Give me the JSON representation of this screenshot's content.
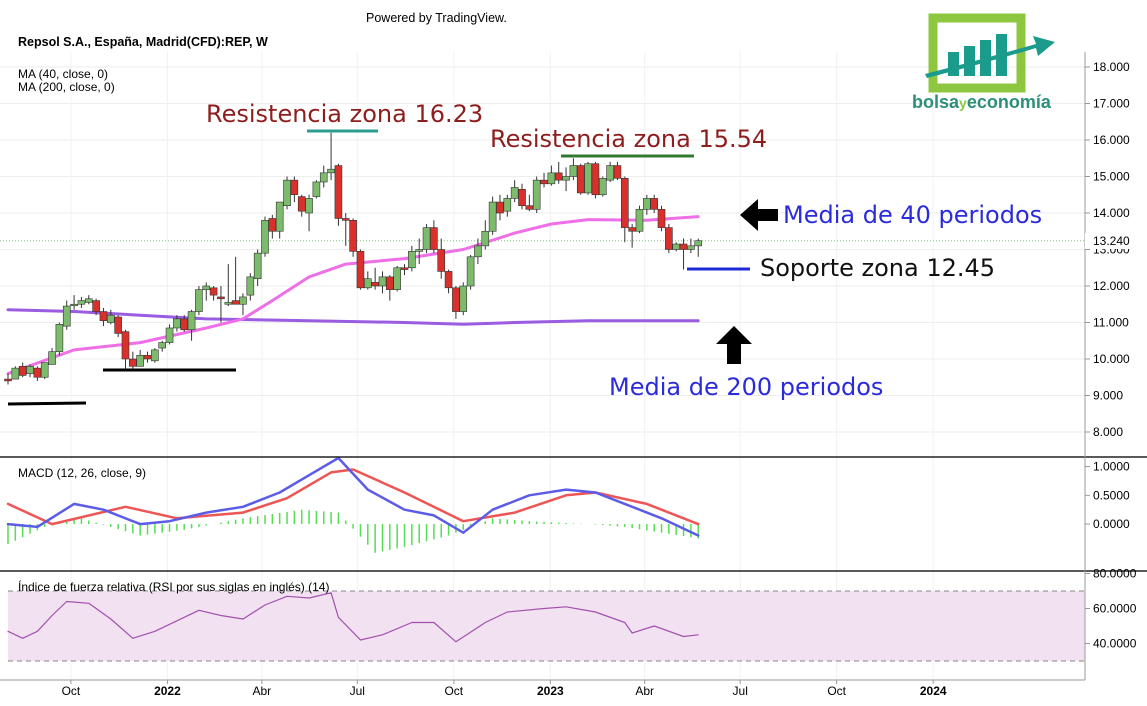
{
  "header": {
    "powered_by": "Powered by TradingView.",
    "symbol": "Repsol S.A., España, Madrid(CFD):REP, W",
    "ma40_label": "MA (40, close, 0)",
    "ma200_label": "MA (200, close, 0)"
  },
  "logo": {
    "text_bolsa": "bolsa",
    "text_y": "y",
    "text_economia": "economía",
    "color_green": "#8dc63f",
    "color_teal": "#1a9b8c"
  },
  "annotations": {
    "resist_1623": "Resistencia zona 16.23",
    "resist_1554": "Resistencia zona 15.54",
    "media40": "Media de 40 periodos",
    "soporte": "Soporte zona 12.45",
    "media200": "Media de 200 periodos"
  },
  "price_axis": {
    "ticks": [
      "18.000",
      "17.000",
      "16.000",
      "15.000",
      "14.000",
      "13.000",
      "12.000",
      "11.000",
      "10.000",
      "9.000",
      "8.000"
    ],
    "last_price": "13.240"
  },
  "macd_axis": {
    "ticks": [
      "1.0000",
      "0.5000",
      "0.0000"
    ]
  },
  "rsi_axis": {
    "ticks": [
      "80.0000",
      "60.0000",
      "40.0000"
    ]
  },
  "time_axis": {
    "ticks": [
      "Oct",
      "2022",
      "Abr",
      "Jul",
      "Oct",
      "2023",
      "Abr",
      "Jul",
      "Oct",
      "2024"
    ]
  },
  "macd_label": "MACD (12, 26, close, 9)",
  "rsi_label": "Índice de fuerza relativa (RSI por sus siglas en inglés) (14)",
  "colors": {
    "up": "#7dbb6c",
    "down": "#d9302c",
    "ma40": "#ee6fe7",
    "ma200": "#9a5ce0",
    "macd": "#5b5ce8",
    "signal": "#ee5555",
    "hist": "#55dd55",
    "rsi": "#a251ad",
    "rsi_band": "#f1e1f1"
  },
  "chart_data": [
    {
      "type": "candlestick",
      "title": "Repsol S.A., España, Madrid(CFD):REP, W",
      "ylim": [
        7.5,
        18.3
      ],
      "x_range": [
        "2021-08-02",
        "2024-04-08"
      ],
      "candles": [
        [
          "2021-08-02",
          9.45,
          9.6,
          9.3,
          9.4
        ],
        [
          "2021-08-09",
          9.45,
          9.8,
          9.45,
          9.75
        ],
        [
          "2021-08-16",
          9.8,
          9.9,
          9.5,
          9.55
        ],
        [
          "2021-08-23",
          9.6,
          9.85,
          9.5,
          9.8
        ],
        [
          "2021-08-30",
          9.75,
          9.8,
          9.4,
          9.5
        ],
        [
          "2021-09-06",
          9.5,
          9.9,
          9.45,
          9.9
        ],
        [
          "2021-09-13",
          9.85,
          10.3,
          9.85,
          10.2
        ],
        [
          "2021-09-20",
          10.2,
          11.0,
          10.1,
          10.95
        ],
        [
          "2021-09-27",
          10.9,
          11.6,
          10.8,
          11.45
        ],
        [
          "2021-10-04",
          11.5,
          11.75,
          11.35,
          11.5
        ],
        [
          "2021-10-11",
          11.5,
          11.7,
          11.4,
          11.6
        ],
        [
          "2021-10-18",
          11.55,
          11.75,
          11.5,
          11.65
        ],
        [
          "2021-10-25",
          11.6,
          11.65,
          11.2,
          11.3
        ],
        [
          "2021-11-01",
          11.3,
          11.4,
          10.9,
          11.05
        ],
        [
          "2021-11-08",
          11.0,
          11.35,
          10.95,
          11.2
        ],
        [
          "2021-11-15",
          11.15,
          11.2,
          10.6,
          10.7
        ],
        [
          "2021-11-22",
          10.75,
          10.8,
          9.7,
          10.0
        ],
        [
          "2021-11-29",
          10.0,
          10.2,
          9.7,
          9.8
        ],
        [
          "2021-12-06",
          9.8,
          10.25,
          9.8,
          10.1
        ],
        [
          "2021-12-13",
          10.1,
          10.2,
          9.9,
          10.0
        ],
        [
          "2021-12-20",
          9.95,
          10.3,
          9.9,
          10.25
        ],
        [
          "2021-12-27",
          10.3,
          10.5,
          10.2,
          10.45
        ],
        [
          "2022-01-03",
          10.45,
          10.95,
          10.4,
          10.85
        ],
        [
          "2022-01-10",
          10.85,
          11.2,
          10.75,
          11.1
        ],
        [
          "2022-01-17",
          11.1,
          11.2,
          10.75,
          10.8
        ],
        [
          "2022-01-24",
          10.8,
          11.35,
          10.5,
          11.3
        ],
        [
          "2022-01-31",
          11.3,
          12.0,
          11.2,
          11.9
        ],
        [
          "2022-02-07",
          11.9,
          12.1,
          11.6,
          12.0
        ],
        [
          "2022-02-14",
          11.95,
          12.0,
          11.6,
          11.75
        ],
        [
          "2022-02-21",
          11.7,
          12.0,
          11.0,
          11.65
        ],
        [
          "2022-02-28",
          11.5,
          12.6,
          11.45,
          11.55
        ],
        [
          "2022-03-07",
          11.6,
          12.8,
          11.5,
          11.5
        ],
        [
          "2022-03-14",
          11.5,
          11.8,
          11.2,
          11.7
        ],
        [
          "2022-03-21",
          11.75,
          12.35,
          11.6,
          12.25
        ],
        [
          "2022-03-28",
          12.2,
          13.0,
          12.0,
          12.9
        ],
        [
          "2022-04-04",
          12.9,
          13.9,
          12.8,
          13.8
        ],
        [
          "2022-04-11",
          13.85,
          13.95,
          13.3,
          13.5
        ],
        [
          "2022-04-18",
          13.5,
          14.3,
          13.3,
          14.3
        ],
        [
          "2022-04-25",
          14.2,
          15.0,
          14.1,
          14.9
        ],
        [
          "2022-05-02",
          14.9,
          15.0,
          14.3,
          14.5
        ],
        [
          "2022-05-09",
          14.45,
          14.5,
          13.9,
          14.05
        ],
        [
          "2022-05-16",
          14.0,
          14.5,
          13.5,
          14.4
        ],
        [
          "2022-05-23",
          14.45,
          14.9,
          14.4,
          14.85
        ],
        [
          "2022-05-30",
          14.85,
          15.3,
          14.7,
          15.1
        ],
        [
          "2022-06-06",
          15.1,
          16.2,
          14.9,
          15.2
        ],
        [
          "2022-06-13",
          15.3,
          15.35,
          13.65,
          13.85
        ],
        [
          "2022-06-20",
          13.85,
          14.0,
          13.1,
          13.8
        ],
        [
          "2022-06-27",
          13.8,
          13.85,
          12.8,
          12.95
        ],
        [
          "2022-07-04",
          12.95,
          13.0,
          11.9,
          11.95
        ],
        [
          "2022-07-11",
          11.95,
          12.4,
          11.9,
          12.2
        ],
        [
          "2022-07-18",
          12.1,
          12.5,
          11.9,
          12.0
        ],
        [
          "2022-07-25",
          12.0,
          12.4,
          11.8,
          12.25
        ],
        [
          "2022-08-01",
          12.25,
          12.3,
          11.6,
          11.9
        ],
        [
          "2022-08-08",
          11.9,
          12.55,
          11.85,
          12.5
        ],
        [
          "2022-08-15",
          12.5,
          12.6,
          12.3,
          12.45
        ],
        [
          "2022-08-22",
          12.5,
          13.1,
          12.4,
          12.95
        ],
        [
          "2022-08-29",
          12.95,
          13.3,
          12.6,
          13.0
        ],
        [
          "2022-09-05",
          13.0,
          13.7,
          12.9,
          13.6
        ],
        [
          "2022-09-12",
          13.6,
          13.8,
          12.9,
          13.0
        ],
        [
          "2022-09-19",
          13.0,
          13.3,
          12.2,
          12.4
        ],
        [
          "2022-09-26",
          12.4,
          12.45,
          11.8,
          11.95
        ],
        [
          "2022-10-03",
          11.95,
          12.0,
          11.1,
          11.3
        ],
        [
          "2022-10-10",
          11.3,
          12.1,
          11.2,
          12.0
        ],
        [
          "2022-10-17",
          12.0,
          12.85,
          11.9,
          12.8
        ],
        [
          "2022-10-24",
          12.8,
          13.3,
          12.6,
          13.1
        ],
        [
          "2022-10-31",
          13.1,
          13.8,
          13.0,
          13.5
        ],
        [
          "2022-11-07",
          13.5,
          14.45,
          13.4,
          14.3
        ],
        [
          "2022-11-14",
          14.3,
          14.5,
          13.8,
          14.0
        ],
        [
          "2022-11-21",
          14.05,
          14.5,
          13.9,
          14.4
        ],
        [
          "2022-11-28",
          14.4,
          14.9,
          14.3,
          14.7
        ],
        [
          "2022-12-05",
          14.65,
          14.8,
          14.1,
          14.2
        ],
        [
          "2022-12-12",
          14.2,
          14.5,
          14.05,
          14.1
        ],
        [
          "2022-12-19",
          14.1,
          15.0,
          14.0,
          14.9
        ],
        [
          "2022-12-26",
          14.9,
          15.1,
          14.7,
          14.8
        ],
        [
          "2023-01-02",
          14.8,
          15.3,
          14.75,
          15.1
        ],
        [
          "2023-01-09",
          15.1,
          15.4,
          14.8,
          14.9
        ],
        [
          "2023-01-16",
          14.9,
          15.25,
          14.6,
          15.0
        ],
        [
          "2023-01-23",
          15.0,
          15.5,
          14.9,
          15.3
        ],
        [
          "2023-01-30",
          15.3,
          15.35,
          14.5,
          14.55
        ],
        [
          "2023-02-06",
          14.55,
          15.4,
          14.5,
          15.35
        ],
        [
          "2023-02-13",
          15.35,
          15.4,
          14.4,
          14.5
        ],
        [
          "2023-02-20",
          14.5,
          15.0,
          14.45,
          14.95
        ],
        [
          "2023-02-27",
          14.9,
          15.4,
          14.85,
          15.3
        ],
        [
          "2023-03-06",
          15.3,
          15.4,
          14.9,
          14.95
        ],
        [
          "2023-03-13",
          14.95,
          15.0,
          13.2,
          13.6
        ],
        [
          "2023-03-20",
          13.6,
          13.7,
          13.05,
          13.5
        ],
        [
          "2023-03-27",
          13.5,
          14.2,
          13.45,
          14.1
        ],
        [
          "2023-04-03",
          14.1,
          14.5,
          13.95,
          14.4
        ],
        [
          "2023-04-10",
          14.4,
          14.5,
          14.0,
          14.1
        ],
        [
          "2023-04-17",
          14.1,
          14.2,
          13.5,
          13.6
        ],
        [
          "2023-04-24",
          13.6,
          13.7,
          12.9,
          13.0
        ],
        [
          "2023-05-01",
          13.0,
          13.2,
          12.95,
          13.15
        ],
        [
          "2023-05-08",
          13.15,
          13.3,
          12.45,
          13.0
        ],
        [
          "2023-05-15",
          13.0,
          13.3,
          12.9,
          13.1
        ],
        [
          "2023-05-22",
          13.1,
          13.3,
          12.8,
          13.24
        ]
      ],
      "ma40": [
        [
          "2021-08-02",
          9.6
        ],
        [
          "2021-10-04",
          10.25
        ],
        [
          "2021-12-06",
          10.45
        ],
        [
          "2022-02-07",
          10.85
        ],
        [
          "2022-03-14",
          11.1
        ],
        [
          "2022-04-11",
          11.6
        ],
        [
          "2022-05-16",
          12.25
        ],
        [
          "2022-06-20",
          12.6
        ],
        [
          "2022-08-15",
          12.75
        ],
        [
          "2022-10-10",
          13.0
        ],
        [
          "2022-11-28",
          13.45
        ],
        [
          "2023-01-02",
          13.7
        ],
        [
          "2023-02-06",
          13.82
        ],
        [
          "2023-04-03",
          13.8
        ],
        [
          "2023-05-22",
          13.9
        ]
      ],
      "ma200": [
        [
          "2021-08-02",
          11.35
        ],
        [
          "2021-10-04",
          11.3
        ],
        [
          "2021-12-06",
          11.2
        ],
        [
          "2022-02-07",
          11.1
        ],
        [
          "2022-05-16",
          11.05
        ],
        [
          "2022-08-15",
          11.0
        ],
        [
          "2022-10-10",
          10.95
        ],
        [
          "2022-11-28",
          11.0
        ],
        [
          "2023-02-06",
          11.05
        ],
        [
          "2023-05-22",
          11.05
        ]
      ],
      "levels": [
        {
          "label": "Resistencia zona 16.23",
          "value": 16.23
        },
        {
          "label": "Resistencia zona 15.54",
          "value": 15.54
        },
        {
          "label": "Soporte zona 12.45",
          "value": 12.45
        }
      ]
    },
    {
      "type": "line",
      "title": "MACD (12, 26, close, 9)",
      "ylim": [
        -0.8,
        1.15
      ],
      "macd": [
        [
          "2021-08-02",
          0.0
        ],
        [
          "2021-08-30",
          -0.05
        ],
        [
          "2021-10-04",
          0.35
        ],
        [
          "2021-11-01",
          0.25
        ],
        [
          "2021-12-06",
          0.0
        ],
        [
          "2022-01-03",
          0.05
        ],
        [
          "2022-02-07",
          0.2
        ],
        [
          "2022-03-14",
          0.3
        ],
        [
          "2022-04-18",
          0.55
        ],
        [
          "2022-05-16",
          0.85
        ],
        [
          "2022-06-13",
          1.15
        ],
        [
          "2022-07-11",
          0.6
        ],
        [
          "2022-08-15",
          0.25
        ],
        [
          "2022-09-12",
          0.15
        ],
        [
          "2022-10-10",
          -0.15
        ],
        [
          "2022-11-07",
          0.25
        ],
        [
          "2022-12-12",
          0.5
        ],
        [
          "2023-01-16",
          0.6
        ],
        [
          "2023-02-13",
          0.55
        ],
        [
          "2023-03-13",
          0.35
        ],
        [
          "2023-04-17",
          0.1
        ],
        [
          "2023-05-22",
          -0.2
        ]
      ],
      "signal": [
        [
          "2021-08-02",
          0.35
        ],
        [
          "2021-09-13",
          0.0
        ],
        [
          "2021-11-22",
          0.3
        ],
        [
          "2022-01-10",
          0.1
        ],
        [
          "2022-03-14",
          0.2
        ],
        [
          "2022-04-25",
          0.45
        ],
        [
          "2022-06-06",
          0.9
        ],
        [
          "2022-06-27",
          0.95
        ],
        [
          "2022-08-15",
          0.55
        ],
        [
          "2022-10-10",
          0.05
        ],
        [
          "2022-11-28",
          0.2
        ],
        [
          "2023-01-16",
          0.5
        ],
        [
          "2023-02-13",
          0.55
        ],
        [
          "2023-04-03",
          0.35
        ],
        [
          "2023-05-22",
          0.0
        ]
      ],
      "histogram": [
        [
          "2021-08-02",
          -0.35
        ],
        [
          "2021-09-06",
          -0.05
        ],
        [
          "2021-10-11",
          0.1
        ],
        [
          "2021-12-06",
          -0.2
        ],
        [
          "2022-01-17",
          -0.1
        ],
        [
          "2022-03-14",
          0.1
        ],
        [
          "2022-05-09",
          0.25
        ],
        [
          "2022-06-13",
          0.2
        ],
        [
          "2022-07-18",
          -0.5
        ],
        [
          "2022-08-15",
          -0.4
        ],
        [
          "2022-09-26",
          -0.2
        ],
        [
          "2022-11-07",
          0.1
        ],
        [
          "2022-12-12",
          0.05
        ],
        [
          "2023-02-06",
          0.0
        ],
        [
          "2023-03-13",
          -0.05
        ],
        [
          "2023-05-22",
          -0.25
        ]
      ]
    },
    {
      "type": "line",
      "title": "Índice de fuerza relativa (RSI por sus siglas en inglés) (14)",
      "ylim": [
        22,
        82
      ],
      "band": [
        30,
        70
      ],
      "rsi": [
        [
          "2021-08-02",
          47
        ],
        [
          "2021-08-16",
          43
        ],
        [
          "2021-08-30",
          47
        ],
        [
          "2021-09-13",
          56
        ],
        [
          "2021-09-27",
          64
        ],
        [
          "2021-10-18",
          63
        ],
        [
          "2021-11-08",
          54
        ],
        [
          "2021-11-29",
          43
        ],
        [
          "2021-12-20",
          47
        ],
        [
          "2022-01-10",
          53
        ],
        [
          "2022-01-31",
          59
        ],
        [
          "2022-02-21",
          56
        ],
        [
          "2022-03-14",
          54
        ],
        [
          "2022-04-04",
          62
        ],
        [
          "2022-04-25",
          67
        ],
        [
          "2022-05-16",
          66
        ],
        [
          "2022-06-06",
          69
        ],
        [
          "2022-06-13",
          55
        ],
        [
          "2022-07-04",
          42
        ],
        [
          "2022-07-25",
          45
        ],
        [
          "2022-08-22",
          52
        ],
        [
          "2022-09-12",
          52
        ],
        [
          "2022-10-03",
          41
        ],
        [
          "2022-10-31",
          52
        ],
        [
          "2022-11-21",
          58
        ],
        [
          "2022-12-26",
          60
        ],
        [
          "2023-01-16",
          61
        ],
        [
          "2023-02-13",
          58
        ],
        [
          "2023-03-13",
          52
        ],
        [
          "2023-03-20",
          46
        ],
        [
          "2023-04-10",
          50
        ],
        [
          "2023-05-08",
          44
        ],
        [
          "2023-05-22",
          45
        ]
      ]
    }
  ]
}
